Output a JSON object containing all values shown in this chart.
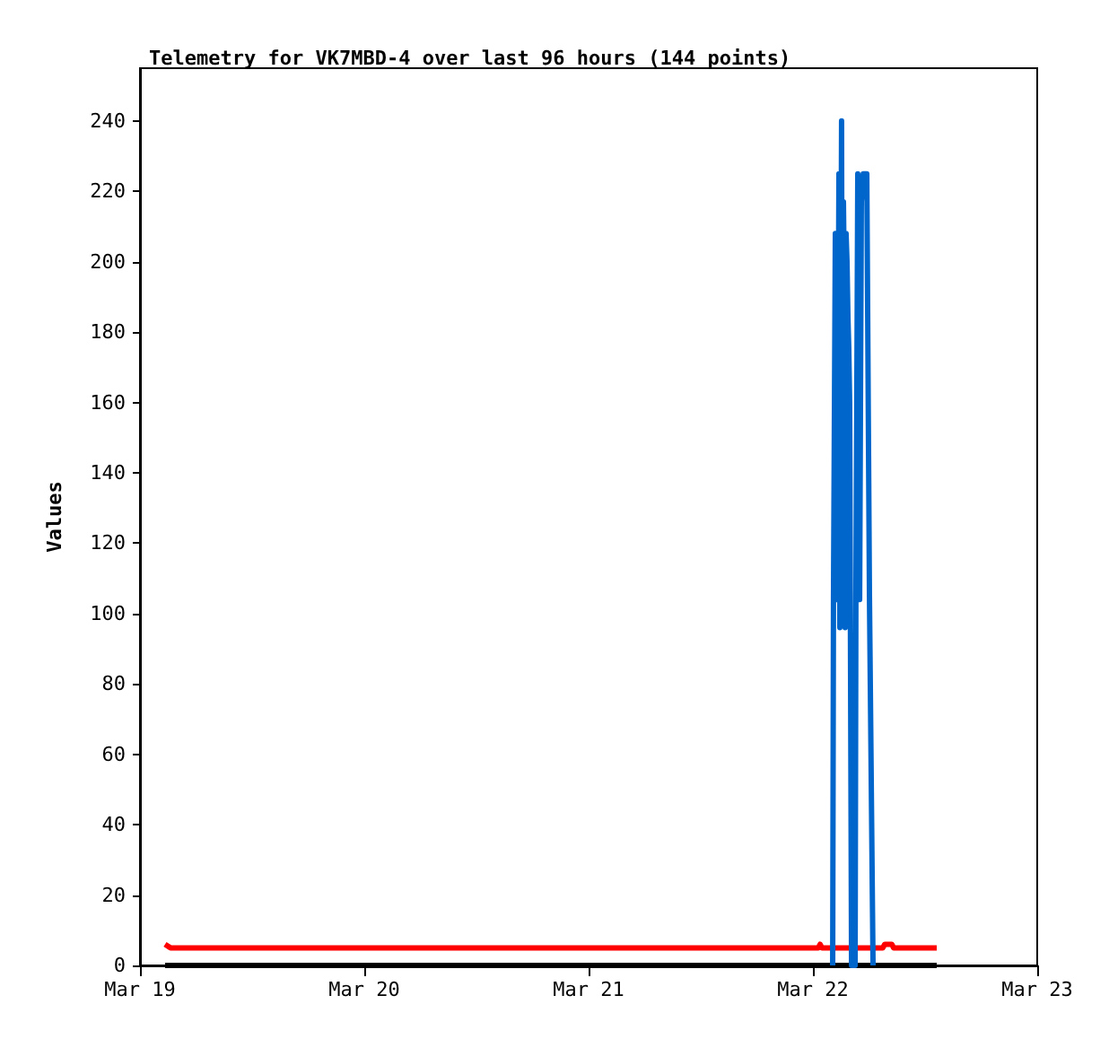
{
  "chart_data": {
    "type": "line",
    "title": "Telemetry for VK7MBD-4 over last 96 hours (144 points)",
    "ylabel": "Values",
    "xlim": [
      "--03-19",
      "--03-23"
    ],
    "xticks": [
      {
        "value": "--03-19",
        "label": "Mar 19"
      },
      {
        "value": "--03-20",
        "label": "Mar 20"
      },
      {
        "value": "--03-21",
        "label": "Mar 21"
      },
      {
        "value": "--03-22",
        "label": "Mar 22"
      },
      {
        "value": "--03-23",
        "label": "Mar 23"
      }
    ],
    "ylim": [
      0,
      255
    ],
    "yticks": [
      0,
      20,
      40,
      60,
      80,
      100,
      120,
      140,
      160,
      180,
      200,
      220,
      240
    ],
    "grid": false,
    "marker": "none",
    "line_style": "solid",
    "series": [
      {
        "color": "#000000",
        "x": [
          "--03-19T02:41",
          "--03-22T13:15"
        ],
        "values": [
          0,
          0
        ]
      },
      {
        "color": "#ff0000",
        "x": [
          "--03-19T02:41",
          "--03-19T03:16",
          "--03-22T00:35",
          "--03-22T00:46",
          "--03-22T00:58",
          "--03-22T07:29",
          "--03-22T07:41",
          "--03-22T08:27",
          "--03-22T08:38",
          "--03-22T13:15"
        ],
        "values": [
          6,
          5,
          5,
          6,
          5,
          5,
          6,
          6,
          5,
          5
        ]
      },
      {
        "color": "#0066cc",
        "x": [
          "--03-22T02:07",
          "--03-22T02:12",
          "--03-22T02:24",
          "--03-22T02:36",
          "--03-22T02:47",
          "--03-22T02:53",
          "--03-22T03:04",
          "--03-22T03:10",
          "--03-22T03:16",
          "--03-22T03:22",
          "--03-22T03:27",
          "--03-22T03:33",
          "--03-22T03:39",
          "--03-22T03:45",
          "--03-22T03:50",
          "--03-22T03:56",
          "--03-22T04:08",
          "--03-22T04:31",
          "--03-22T04:36",
          "--03-22T04:48",
          "--03-22T05:00",
          "--03-22T05:11",
          "--03-22T05:23",
          "--03-22T05:46",
          "--03-22T06:03",
          "--03-22T06:26"
        ],
        "values": [
          0,
          104,
          208,
          104,
          225,
          96,
          240,
          97,
          217,
          193,
          96,
          208,
          200,
          184,
          176,
          160,
          0,
          0,
          104,
          225,
          104,
          217,
          225,
          225,
          105,
          0
        ]
      }
    ]
  }
}
